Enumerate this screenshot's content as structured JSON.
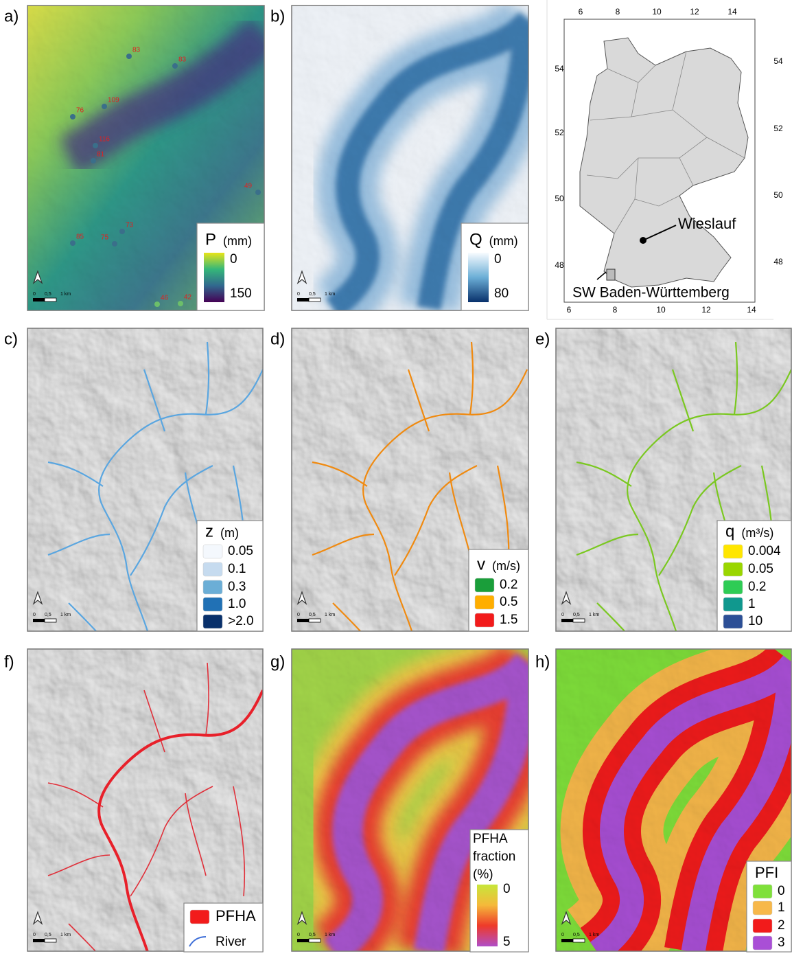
{
  "panels": [
    {
      "label": "a)",
      "legend": {
        "title": "P",
        "unit": "(mm)",
        "colors": [
          "#e8e419",
          "#35b779",
          "#31688e",
          "#440154"
        ],
        "items": [
          {
            "label": 0
          },
          {
            "label": 150
          }
        ]
      },
      "stations": [
        83,
        83,
        109,
        76,
        116,
        81,
        49,
        73,
        85,
        75,
        46,
        42
      ]
    },
    {
      "label": "b)",
      "legend": {
        "title": "Q",
        "unit": "(mm)",
        "colors": [
          "#f7fbff",
          "#6baed6",
          "#08306b"
        ],
        "items": [
          {
            "label": 0
          },
          {
            "label": 80
          }
        ]
      }
    },
    {
      "label": "c)",
      "legend": {
        "title": "z",
        "unit": "(m)",
        "items": [
          {
            "label": 0.05,
            "color": "#f4f8fd"
          },
          {
            "label": 0.1,
            "color": "#c6dbef"
          },
          {
            "label": 0.3,
            "color": "#6baed6"
          },
          {
            "label": "1.0",
            "color": "#2171b5"
          },
          {
            "label": ">2.0",
            "color": "#08306b"
          }
        ]
      }
    },
    {
      "label": "d)",
      "legend": {
        "title": "v",
        "unit": "(m/s)",
        "items": [
          {
            "label": 0.2,
            "color": "#1a9e3a"
          },
          {
            "label": 0.5,
            "color": "#ffae00"
          },
          {
            "label": 1.5,
            "color": "#f21b1b"
          }
        ]
      }
    },
    {
      "label": "e)",
      "legend": {
        "title": "q",
        "unit": "(m³/s)",
        "items": [
          {
            "label": 0.004,
            "color": "#ffe600"
          },
          {
            "label": 0.05,
            "color": "#9ad600"
          },
          {
            "label": 0.2,
            "color": "#2ecc55"
          },
          {
            "label": 1,
            "color": "#10988e"
          },
          {
            "label": 10,
            "color": "#2c4f96"
          }
        ]
      }
    },
    {
      "label": "f)",
      "legend": {
        "items": [
          {
            "label": "PFHA",
            "color": "#f21b1b"
          },
          {
            "label": "River",
            "color": "#3f6fd8"
          }
        ]
      }
    },
    {
      "label": "g)",
      "legend": {
        "title_lines": [
          "PFHA",
          "fraction",
          "(%)"
        ],
        "colors": [
          "#c7e63a",
          "#f5b93a",
          "#ee3a2a",
          "#b04ec8"
        ],
        "items": [
          {
            "label": 0
          },
          {
            "label": 5
          }
        ]
      }
    },
    {
      "label": "h)",
      "legend": {
        "title": "PFI",
        "items": [
          {
            "label": 0,
            "color": "#7fe03a"
          },
          {
            "label": 1,
            "color": "#f7b84a"
          },
          {
            "label": 2,
            "color": "#f21b1b"
          },
          {
            "label": 3,
            "color": "#a94fd6"
          }
        ]
      }
    }
  ],
  "scale_bar": [
    "0",
    "0,5",
    "1 km"
  ],
  "inset": {
    "xticks_top": [
      6,
      8,
      10,
      12,
      14
    ],
    "xticks_bottom": [
      6,
      8,
      10,
      12,
      14
    ],
    "yticks_left": [
      54,
      52,
      50,
      48
    ],
    "yticks_right": [
      54,
      52,
      50,
      48
    ],
    "labels": [
      "Wieslauf",
      "SW Baden-Württemberg"
    ]
  }
}
